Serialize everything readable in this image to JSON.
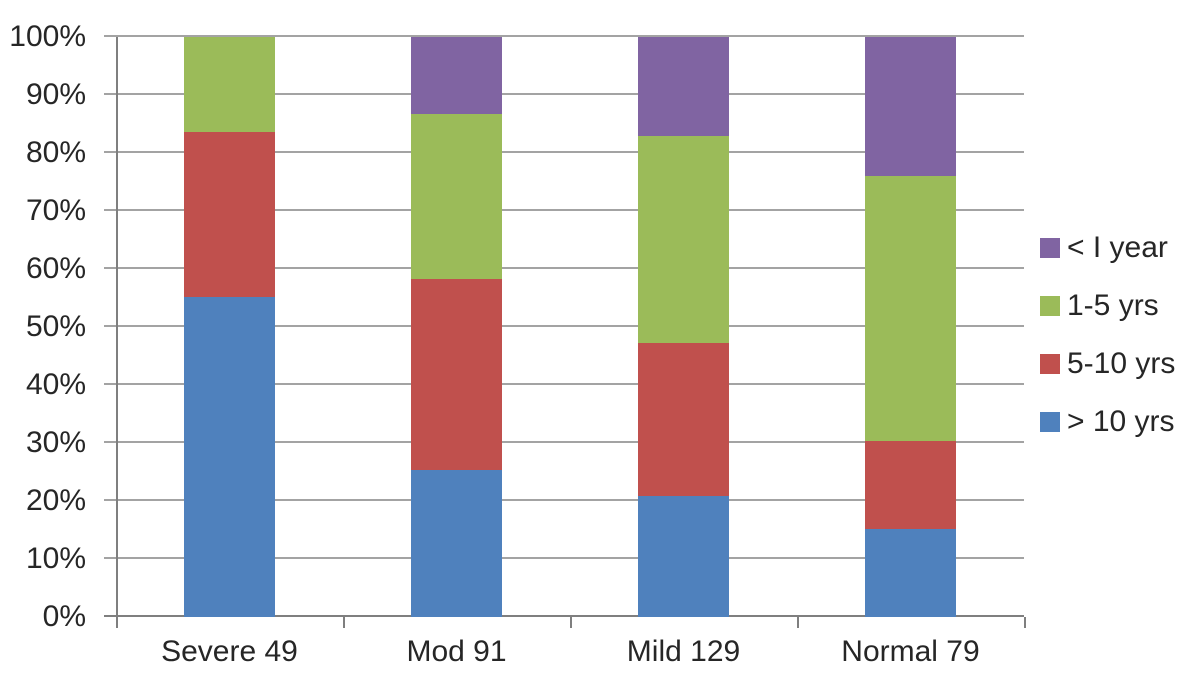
{
  "chart_data": {
    "type": "bar",
    "variant": "100-percent-stacked-column",
    "title": "",
    "xlabel": "",
    "ylabel": "",
    "grid": true,
    "ylim": [
      0,
      100
    ],
    "y_ticks": [
      "0%",
      "10%",
      "20%",
      "30%",
      "40%",
      "50%",
      "60%",
      "70%",
      "80%",
      "90%",
      "100%"
    ],
    "categories": [
      "Severe 49",
      "Mod 91",
      "Mild 129",
      "Normal 79"
    ],
    "series": [
      {
        "name": "> 10 yrs",
        "color": "#4F81BD",
        "values": [
          55.1,
          25.3,
          20.9,
          15.2
        ]
      },
      {
        "name": "5-10 yrs",
        "color": "#C0504D",
        "values": [
          28.6,
          32.9,
          26.4,
          15.2
        ]
      },
      {
        "name": "1-5 yrs",
        "color": "#9BBB59",
        "values": [
          16.3,
          28.6,
          35.7,
          45.6
        ]
      },
      {
        "name": "< I year",
        "color": "#8064A2",
        "values": [
          0.0,
          13.2,
          17.0,
          24.0
        ]
      }
    ],
    "legend_position": "right",
    "legend_order_top_to_bottom": [
      "< I year",
      "1-5 yrs",
      "5-10 yrs",
      "> 10 yrs"
    ]
  }
}
